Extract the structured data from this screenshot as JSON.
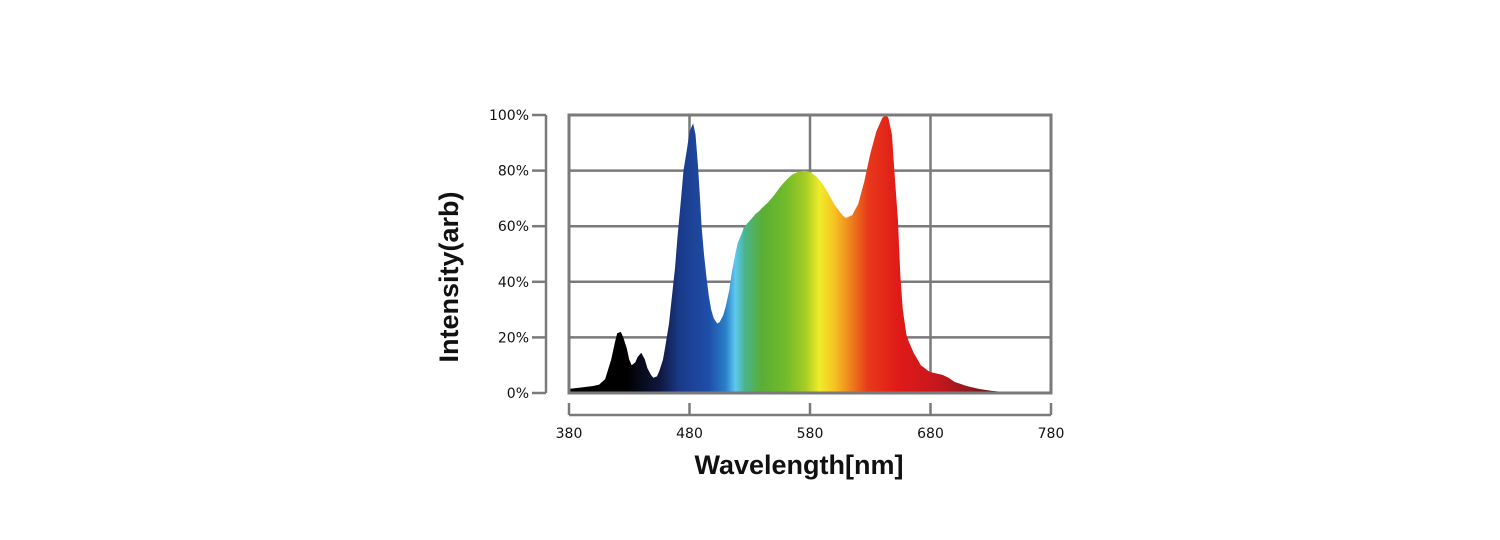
{
  "chart_data": {
    "type": "area",
    "title": "",
    "xlabel": "Wavelength[nm]",
    "ylabel": "Intensity(arb)",
    "xlim": [
      380,
      780
    ],
    "ylim": [
      0,
      100
    ],
    "x_ticks": [
      380,
      480,
      580,
      680,
      780
    ],
    "x_tick_labels": [
      "380",
      "480",
      "580",
      "680",
      "780"
    ],
    "y_ticks": [
      0,
      20,
      40,
      60,
      80,
      100
    ],
    "y_tick_labels": [
      "0%",
      "20%",
      "40%",
      "60%",
      "80%",
      "100%"
    ],
    "grid": true,
    "legend": "none",
    "fill": "visible-spectrum gradient",
    "series": [
      {
        "x": [
          380,
          390,
          400,
          405,
          410,
          415,
          418,
          420,
          423,
          425,
          428,
          430,
          432,
          435,
          437,
          440,
          443,
          445,
          448,
          450,
          453,
          455,
          458,
          460,
          463,
          465,
          468,
          470,
          473,
          475,
          478,
          480,
          483,
          485,
          487,
          489,
          490,
          492,
          494,
          496,
          498,
          500,
          503,
          505,
          508,
          510,
          513,
          515,
          518,
          520,
          523,
          525,
          528,
          530,
          533,
          535,
          538,
          540,
          545,
          550,
          555,
          560,
          565,
          570,
          575,
          580,
          585,
          590,
          595,
          600,
          605,
          608,
          610,
          615,
          620,
          625,
          630,
          635,
          640,
          643,
          645,
          648,
          650,
          653,
          655,
          657,
          659,
          660,
          662,
          664,
          666,
          668,
          670,
          672,
          675,
          678,
          680,
          685,
          690,
          695,
          700,
          710,
          720,
          730,
          740,
          750,
          760,
          770,
          780
        ],
        "y": [
          1.5,
          2.0,
          2.5,
          3.0,
          5.0,
          12.0,
          18.0,
          21.5,
          22.0,
          20.0,
          16.0,
          12.0,
          10.0,
          11.0,
          13.0,
          14.5,
          12.0,
          9.0,
          6.5,
          5.5,
          6.0,
          8.0,
          12.0,
          17.0,
          25.0,
          33.0,
          45.0,
          56.0,
          70.0,
          80.0,
          88.0,
          94.0,
          97.0,
          93.0,
          82.0,
          68.0,
          60.0,
          50.0,
          42.0,
          35.0,
          30.0,
          27.0,
          25.0,
          25.5,
          28.0,
          31.0,
          37.0,
          43.0,
          50.0,
          54.0,
          57.0,
          59.5,
          61.0,
          62.0,
          63.5,
          64.5,
          65.5,
          66.5,
          68.5,
          71.0,
          74.0,
          76.5,
          78.5,
          79.5,
          80.0,
          79.5,
          78.0,
          75.5,
          72.0,
          68.0,
          65.0,
          63.5,
          63.0,
          64.0,
          68.0,
          76.0,
          86.0,
          94.0,
          99.0,
          100.0,
          99.0,
          93.0,
          80.0,
          62.0,
          42.0,
          30.0,
          24.0,
          21.0,
          18.5,
          16.5,
          14.5,
          13.0,
          11.5,
          10.0,
          9.0,
          8.0,
          7.5,
          7.0,
          6.5,
          5.5,
          4.0,
          2.5,
          1.5,
          0.8,
          0.4,
          0.2,
          0.1,
          0.1,
          0.0
        ]
      }
    ]
  }
}
